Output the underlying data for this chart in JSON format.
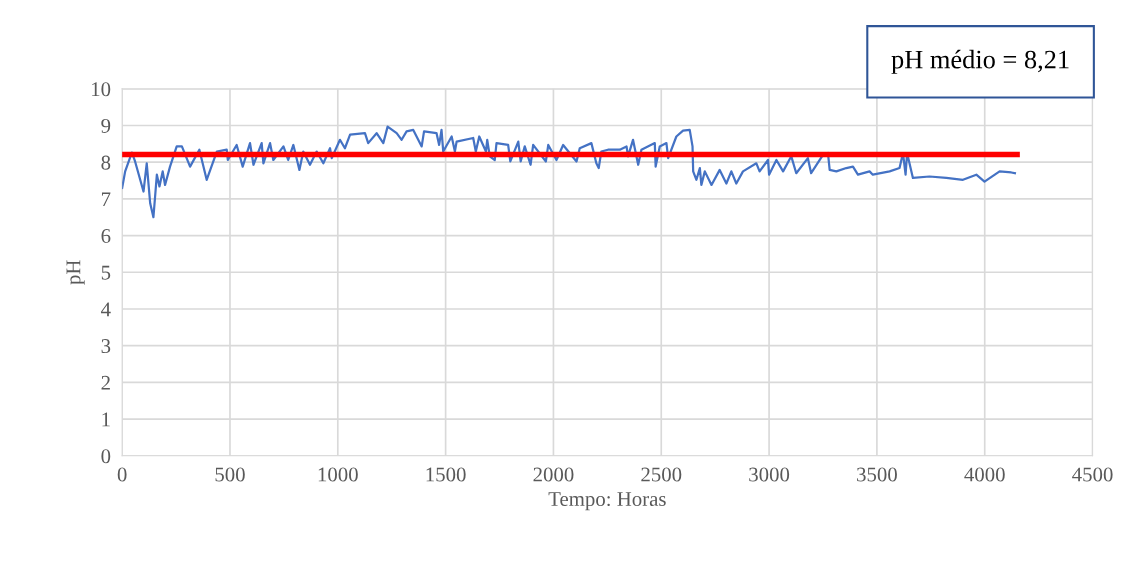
{
  "chart_data": {
    "type": "line",
    "xlabel": "Tempo: Horas",
    "ylabel": "pH",
    "xlim": [
      0,
      4500
    ],
    "xticks": [
      0,
      500,
      1000,
      1500,
      2000,
      2500,
      3000,
      3500,
      4000,
      4500
    ],
    "ylim": [
      0,
      10
    ],
    "yticks": [
      0,
      1,
      2,
      3,
      4,
      5,
      6,
      7,
      8,
      9,
      10
    ],
    "grid": true,
    "annotations": [
      "pH médio = 8,21"
    ],
    "series": [
      {
        "color": "#4472c4",
        "x": [
          0,
          14,
          45,
          60,
          99,
          114,
          130,
          145,
          161,
          173,
          188,
          199,
          222,
          253,
          277,
          315,
          358,
          392,
          439,
          485,
          490,
          531,
          559,
          593,
          609,
          647,
          655,
          686,
          701,
          748,
          770,
          794,
          822,
          840,
          871,
          902,
          933,
          964,
          972,
          1010,
          1033,
          1057,
          1126,
          1141,
          1180,
          1211,
          1231,
          1273,
          1296,
          1319,
          1350,
          1389,
          1400,
          1458,
          1470,
          1481,
          1489,
          1528,
          1543,
          1551,
          1628,
          1640,
          1656,
          1687,
          1693,
          1705,
          1728,
          1736,
          1790,
          1800,
          1837,
          1848,
          1867,
          1894,
          1906,
          1965,
          1976,
          2014,
          2045,
          2107,
          2122,
          2176,
          2199,
          2210,
          2222,
          2253,
          2308,
          2339,
          2346,
          2369,
          2393,
          2408,
          2470,
          2474,
          2493,
          2524,
          2532,
          2570,
          2601,
          2632,
          2645,
          2648,
          2663,
          2679,
          2686,
          2702,
          2733,
          2771,
          2802,
          2825,
          2848,
          2879,
          2941,
          2956,
          2995,
          3000,
          3034,
          3065,
          3103,
          3126,
          3180,
          3195,
          3250,
          3273,
          3281,
          3312,
          3358,
          3389,
          3412,
          3466,
          3481,
          3559,
          3605,
          3621,
          3633,
          3640,
          3667,
          3744,
          3822,
          3899,
          3961,
          3999,
          4069,
          4123,
          4140
        ],
        "values": [
          7.3,
          7.75,
          8.26,
          8.02,
          7.2,
          7.97,
          6.88,
          6.5,
          7.66,
          7.34,
          7.75,
          7.38,
          7.88,
          8.43,
          8.43,
          7.88,
          8.34,
          7.52,
          8.29,
          8.34,
          8.06,
          8.47,
          7.88,
          8.52,
          7.93,
          8.52,
          7.97,
          8.52,
          8.06,
          8.43,
          8.06,
          8.47,
          7.79,
          8.29,
          7.93,
          8.29,
          7.97,
          8.38,
          8.11,
          8.61,
          8.38,
          8.75,
          8.79,
          8.52,
          8.79,
          8.52,
          8.97,
          8.79,
          8.61,
          8.84,
          8.88,
          8.43,
          8.84,
          8.79,
          8.47,
          8.88,
          8.29,
          8.7,
          8.29,
          8.56,
          8.66,
          8.29,
          8.7,
          8.29,
          8.61,
          8.16,
          8.06,
          8.52,
          8.47,
          8.02,
          8.56,
          8.02,
          8.43,
          7.93,
          8.47,
          8.02,
          8.47,
          8.06,
          8.47,
          8.02,
          8.38,
          8.52,
          7.97,
          7.84,
          8.29,
          8.34,
          8.34,
          8.43,
          8.16,
          8.61,
          7.93,
          8.34,
          8.52,
          7.88,
          8.43,
          8.52,
          8.11,
          8.7,
          8.86,
          8.88,
          8.43,
          7.75,
          7.52,
          7.84,
          7.38,
          7.75,
          7.38,
          7.79,
          7.42,
          7.75,
          7.42,
          7.75,
          7.97,
          7.75,
          8.06,
          7.66,
          8.06,
          7.75,
          8.16,
          7.7,
          8.11,
          7.7,
          8.2,
          8.25,
          7.79,
          7.75,
          7.84,
          7.88,
          7.66,
          7.75,
          7.66,
          7.75,
          7.84,
          8.25,
          7.66,
          8.25,
          7.57,
          7.61,
          7.57,
          7.52,
          7.66,
          7.47,
          7.75,
          7.72,
          7.7
        ]
      },
      {
        "color": "#ff0000",
        "x": [
          0,
          4150
        ],
        "values": [
          8.21,
          8.21
        ]
      }
    ]
  }
}
